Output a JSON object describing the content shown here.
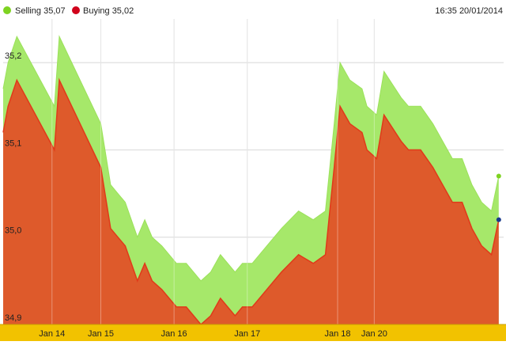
{
  "legend": [
    {
      "label": "Selling 35,07",
      "color": "#7ed321"
    },
    {
      "label": "Buying 35,02",
      "color": "#d0021b"
    }
  ],
  "timestamp": "16:35 20/01/2014",
  "colors": {
    "selling_fill": "#a6e86a",
    "buying_fill": "#de5a2b",
    "buying_line": "#e03a1a",
    "axis_band": "#f2c200",
    "grid": "#d8d8d8",
    "selling_marker": "#7ed321",
    "buying_marker": "#1a3a8a"
  },
  "chart_data": {
    "type": "area",
    "ylim": [
      34.9,
      35.25
    ],
    "y_ticks": [
      {
        "value": 35.2,
        "label": "35,2"
      },
      {
        "value": 35.1,
        "label": "35,1"
      },
      {
        "value": 35.0,
        "label": "35,0"
      },
      {
        "value": 34.9,
        "label": "34,9"
      }
    ],
    "x_ticks": [
      {
        "x": 1.0,
        "label": "Jan 14"
      },
      {
        "x": 2.0,
        "label": "Jan 15"
      },
      {
        "x": 3.5,
        "label": "Jan 16"
      },
      {
        "x": 5.0,
        "label": "Jan 17"
      },
      {
        "x": 6.85,
        "label": "Jan 18"
      },
      {
        "x": 7.6,
        "label": "Jan 20"
      }
    ],
    "xlim": [
      0,
      10.25
    ],
    "grid": true,
    "legend_position": "top-left",
    "x": [
      0,
      0.1,
      0.28,
      1.05,
      1.15,
      2.0,
      2.2,
      2.35,
      2.5,
      2.75,
      2.9,
      3.05,
      3.25,
      3.55,
      3.75,
      4.05,
      4.25,
      4.45,
      4.75,
      4.9,
      5.1,
      5.4,
      5.7,
      6.05,
      6.35,
      6.6,
      6.78,
      6.9,
      7.1,
      7.35,
      7.45,
      7.65,
      7.8,
      8.15,
      8.3,
      8.55,
      8.8,
      9.2,
      9.4,
      9.6,
      9.8,
      10.0,
      10.15
    ],
    "series": [
      {
        "name": "Selling",
        "values": [
          35.17,
          35.2,
          35.23,
          35.15,
          35.23,
          35.13,
          35.06,
          35.05,
          35.04,
          35.0,
          35.02,
          35.0,
          34.99,
          34.97,
          34.97,
          34.95,
          34.96,
          34.98,
          34.96,
          34.97,
          34.97,
          34.99,
          35.01,
          35.03,
          35.02,
          35.03,
          35.13,
          35.2,
          35.18,
          35.17,
          35.15,
          35.14,
          35.19,
          35.16,
          35.15,
          35.15,
          35.13,
          35.09,
          35.09,
          35.06,
          35.04,
          35.03,
          35.07
        ]
      },
      {
        "name": "Buying",
        "values": [
          35.12,
          35.15,
          35.18,
          35.1,
          35.18,
          35.08,
          35.01,
          35.0,
          34.99,
          34.95,
          34.97,
          34.95,
          34.94,
          34.92,
          34.92,
          34.9,
          34.91,
          34.93,
          34.91,
          34.92,
          34.92,
          34.94,
          34.96,
          34.98,
          34.97,
          34.98,
          35.08,
          35.15,
          35.13,
          35.12,
          35.1,
          35.09,
          35.14,
          35.11,
          35.1,
          35.1,
          35.08,
          35.04,
          35.04,
          35.01,
          34.99,
          34.98,
          35.02
        ]
      }
    ]
  }
}
